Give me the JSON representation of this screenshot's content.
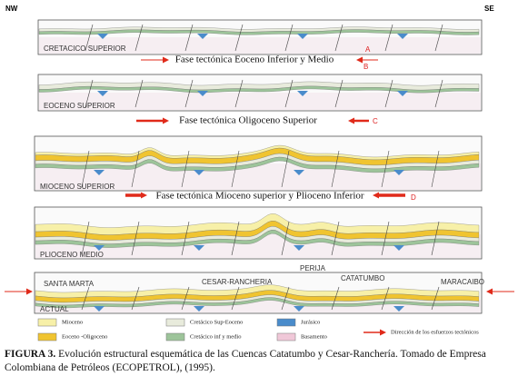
{
  "orientation": {
    "left": "NW",
    "right": "SE"
  },
  "panels": [
    {
      "label": "CRETACICO SUPERIOR"
    },
    {
      "label": "EOCENO SUPERIOR"
    },
    {
      "label": "MIOCENO SUPERIOR"
    },
    {
      "label": "PLIOCENO MEDIO"
    },
    {
      "label": "ACTUAL",
      "places": [
        "SANTA MARTA",
        "CESAR-RANCHERIA",
        "CATATUMBO",
        "MARACAIBO"
      ]
    }
  ],
  "perija": "PERIJA",
  "phases": [
    {
      "text": "Fase tectónica Eoceno Inferior y Medio",
      "markers": [
        "A",
        "B"
      ]
    },
    {
      "text": "Fase tectónica Oligoceno Superior",
      "markers": [
        "C"
      ]
    },
    {
      "text": "Fase tectónica Mioceno superior y Plioceno Inferior",
      "markers": [
        "D"
      ]
    }
  ],
  "legend": [
    "Mioceno",
    "Eoceno -Oligoceno",
    "Cretácico Sup-Eoceno",
    "Cretácico inf y medio",
    "Jurásico",
    "Basamento",
    "Dirección de los esfuerzos tectónicos"
  ],
  "caption": {
    "lead": "FIGURA 3.",
    "text": "Evolución estructural esquemática de las Cuencas Catatumbo y Cesar-Ranchería. Tomado de Empresa Colombiana de Petróleos (ECOPETROL), (1995)."
  }
}
